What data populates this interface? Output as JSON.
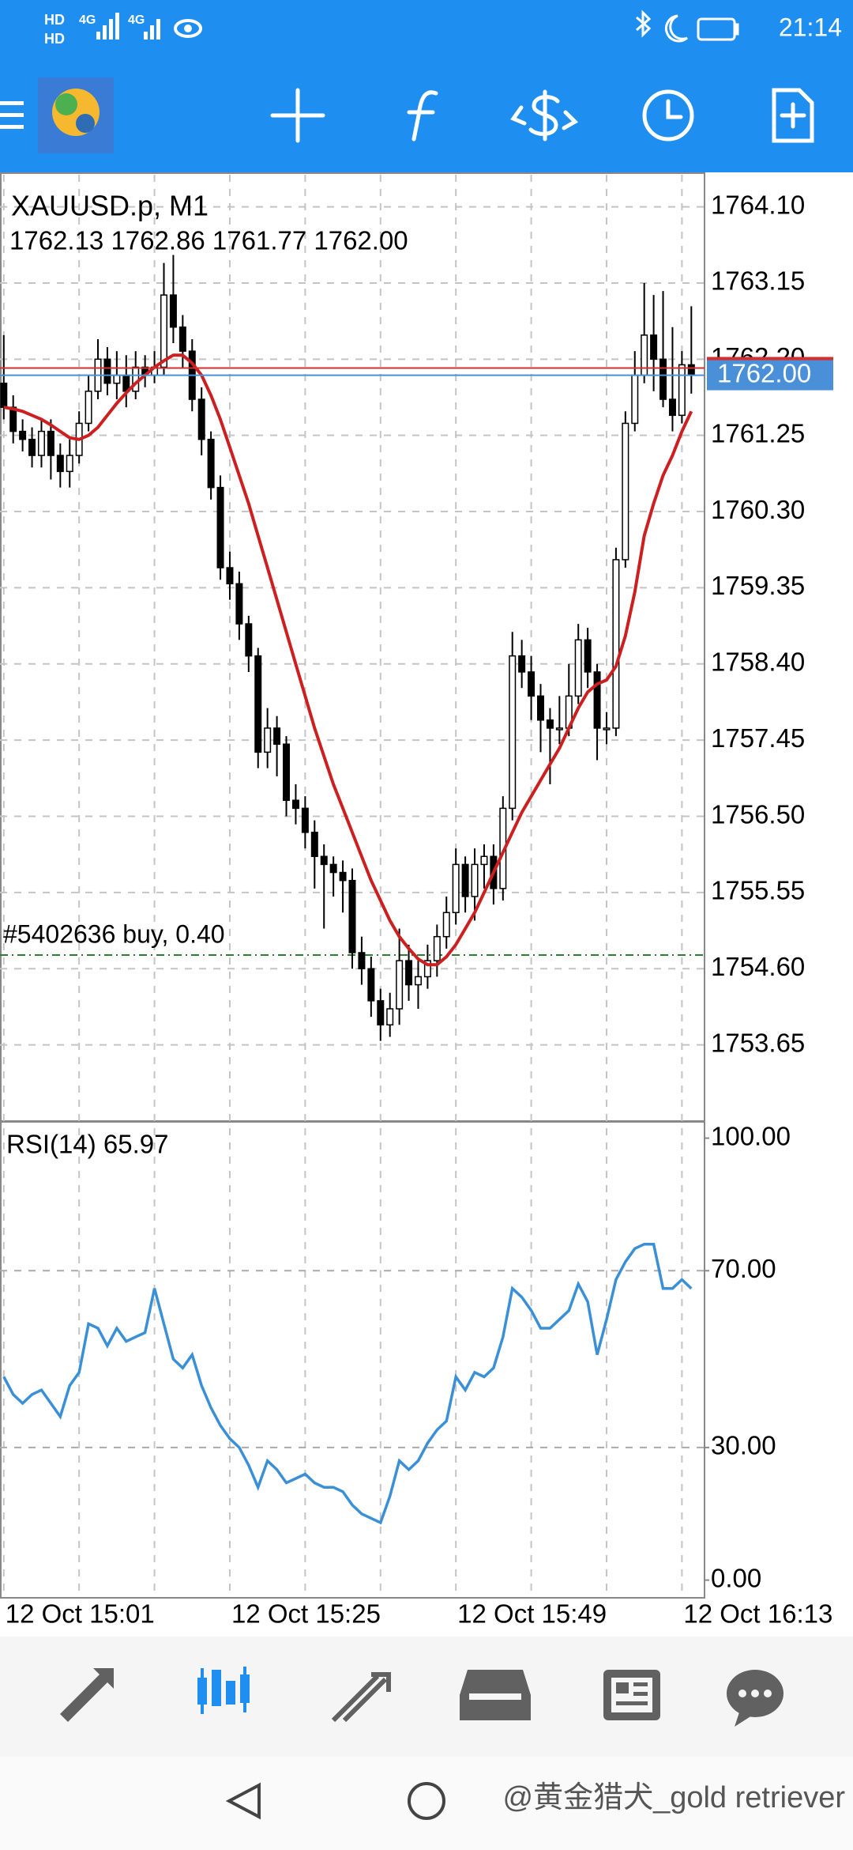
{
  "status_bar": {
    "hd": "HD",
    "net": "4G",
    "time": "21:14"
  },
  "chart_data": [
    {
      "type": "candlestick",
      "title": "XAUUSD.p, M1",
      "subtitle": "1762.13 1762.86 1761.77 1762.00",
      "open": [
        1761.9,
        1761.6,
        1761.3,
        1761.2,
        1761.0,
        1761.3,
        1761.0,
        1760.8,
        1761.0,
        1761.4,
        1761.8,
        1762.2,
        1761.9,
        1762.0,
        1761.8,
        1762.1,
        1762.0,
        1762.1,
        1763.0,
        1762.6,
        1762.3,
        1761.7,
        1761.2,
        1760.6,
        1759.6,
        1759.4,
        1758.9,
        1758.5,
        1757.3,
        1757.6,
        1757.4,
        1756.7,
        1756.6,
        1756.3,
        1756.0,
        1755.9,
        1755.8,
        1755.7,
        1754.8,
        1754.6,
        1754.2,
        1753.9,
        1754.1,
        1754.7,
        1754.4,
        1754.5,
        1754.7,
        1755.0,
        1755.3,
        1755.9,
        1755.5,
        1755.9,
        1756.0,
        1755.6,
        1756.6,
        1758.5,
        1758.3,
        1758.0,
        1757.7,
        1757.6,
        1757.6,
        1758.0,
        1758.7,
        1758.3,
        1757.6,
        1757.6,
        1759.7,
        1761.4,
        1762.0,
        1762.5,
        1762.2,
        1761.7,
        1761.5,
        1762.13
      ],
      "high": [
        1762.5,
        1761.75,
        1761.45,
        1761.35,
        1761.45,
        1761.45,
        1761.15,
        1761.2,
        1761.55,
        1762.0,
        1762.45,
        1762.35,
        1762.3,
        1762.25,
        1762.3,
        1762.25,
        1762.3,
        1763.4,
        1763.5,
        1762.75,
        1762.45,
        1761.85,
        1761.3,
        1760.75,
        1759.8,
        1759.55,
        1759.0,
        1758.6,
        1757.85,
        1757.75,
        1757.5,
        1756.9,
        1756.75,
        1756.45,
        1756.15,
        1756.0,
        1755.95,
        1755.85,
        1755.0,
        1754.75,
        1754.35,
        1754.3,
        1755.1,
        1754.9,
        1754.7,
        1754.9,
        1755.15,
        1755.5,
        1756.1,
        1756.0,
        1756.1,
        1756.15,
        1756.15,
        1756.75,
        1758.8,
        1758.7,
        1758.5,
        1758.15,
        1757.85,
        1758.0,
        1758.4,
        1758.9,
        1758.85,
        1758.4,
        1757.8,
        1759.85,
        1761.55,
        1762.3,
        1763.15,
        1763.0,
        1763.05,
        1762.6,
        1762.3,
        1762.86
      ],
      "low": [
        1761.45,
        1761.15,
        1761.05,
        1760.85,
        1760.85,
        1760.7,
        1760.6,
        1760.6,
        1760.9,
        1761.3,
        1761.7,
        1761.75,
        1761.7,
        1761.6,
        1761.7,
        1761.85,
        1761.9,
        1762.0,
        1762.4,
        1762.1,
        1761.55,
        1761.0,
        1760.45,
        1759.45,
        1759.2,
        1758.7,
        1758.3,
        1757.1,
        1757.1,
        1757.0,
        1756.5,
        1756.4,
        1756.1,
        1755.6,
        1755.1,
        1755.5,
        1755.3,
        1754.6,
        1754.4,
        1754.0,
        1753.7,
        1753.75,
        1753.9,
        1754.2,
        1754.1,
        1754.35,
        1754.5,
        1754.85,
        1755.15,
        1755.3,
        1755.2,
        1755.6,
        1755.4,
        1755.45,
        1756.45,
        1758.1,
        1757.7,
        1757.3,
        1756.9,
        1757.4,
        1757.5,
        1757.9,
        1758.1,
        1757.2,
        1757.4,
        1757.5,
        1759.6,
        1761.3,
        1761.9,
        1761.8,
        1761.6,
        1761.3,
        1761.4,
        1761.77
      ],
      "close": [
        1761.6,
        1761.3,
        1761.2,
        1761.0,
        1761.3,
        1761.0,
        1760.8,
        1761.0,
        1761.4,
        1761.8,
        1762.2,
        1761.9,
        1762.0,
        1761.8,
        1762.1,
        1762.0,
        1762.1,
        1763.0,
        1762.6,
        1762.3,
        1761.7,
        1761.2,
        1760.6,
        1759.6,
        1759.4,
        1758.9,
        1758.5,
        1757.3,
        1757.6,
        1757.4,
        1756.7,
        1756.6,
        1756.3,
        1756.0,
        1755.9,
        1755.8,
        1755.7,
        1754.8,
        1754.6,
        1754.2,
        1753.9,
        1754.1,
        1754.7,
        1754.4,
        1754.5,
        1754.7,
        1755.0,
        1755.3,
        1755.9,
        1755.5,
        1755.9,
        1756.0,
        1755.6,
        1756.6,
        1758.5,
        1758.3,
        1758.0,
        1757.7,
        1757.6,
        1757.6,
        1758.0,
        1758.7,
        1758.3,
        1757.6,
        1757.6,
        1759.7,
        1761.4,
        1762.0,
        1762.5,
        1762.2,
        1761.7,
        1761.5,
        1762.13,
        1762.0
      ],
      "ma": {
        "color": "#cc1f1f",
        "values": [
          1761.6,
          1761.58,
          1761.55,
          1761.5,
          1761.45,
          1761.38,
          1761.3,
          1761.22,
          1761.2,
          1761.25,
          1761.35,
          1761.5,
          1761.65,
          1761.78,
          1761.9,
          1762.0,
          1762.1,
          1762.18,
          1762.25,
          1762.25,
          1762.15,
          1762.0,
          1761.75,
          1761.45,
          1761.1,
          1760.75,
          1760.4,
          1760.0,
          1759.6,
          1759.2,
          1758.8,
          1758.4,
          1758.0,
          1757.6,
          1757.25,
          1756.9,
          1756.6,
          1756.3,
          1756.0,
          1755.7,
          1755.45,
          1755.2,
          1755.0,
          1754.85,
          1754.72,
          1754.65,
          1754.65,
          1754.75,
          1754.9,
          1755.1,
          1755.3,
          1755.55,
          1755.8,
          1756.05,
          1756.3,
          1756.55,
          1756.75,
          1756.95,
          1757.15,
          1757.35,
          1757.6,
          1757.85,
          1758.05,
          1758.15,
          1758.2,
          1758.37,
          1758.75,
          1759.3,
          1760.0,
          1760.4,
          1760.75,
          1761.0,
          1761.3,
          1761.55
        ]
      },
      "xlim": [
        -0.4,
        74.4
      ],
      "xticks": [
        {
          "value": 0,
          "label": "12 Oct 15:01"
        },
        {
          "value": 24,
          "label": "12 Oct 15:25"
        },
        {
          "value": 48,
          "label": "12 Oct 15:49"
        },
        {
          "value": 72,
          "label": "12 Oct 16:13"
        }
      ],
      "xgrid": [
        8,
        16,
        32,
        40,
        56,
        64
      ],
      "ylim": [
        1752.71,
        1764.5
      ],
      "yticks": [
        {
          "value": 1764.1,
          "label": "1764.10"
        },
        {
          "value": 1763.15,
          "label": "1763.15"
        },
        {
          "value": 1762.2,
          "label": "1762.20"
        },
        {
          "value": 1761.25,
          "label": "1761.25"
        },
        {
          "value": 1760.3,
          "label": "1760.30"
        },
        {
          "value": 1759.35,
          "label": "1759.35"
        },
        {
          "value": 1758.4,
          "label": "1758.40"
        },
        {
          "value": 1757.45,
          "label": "1757.45"
        },
        {
          "value": 1756.5,
          "label": "1756.50"
        },
        {
          "value": 1755.55,
          "label": "1755.55"
        },
        {
          "value": 1754.6,
          "label": "1754.60"
        },
        {
          "value": 1753.65,
          "label": "1753.65"
        }
      ],
      "grid": true,
      "ask": {
        "value": 1762.09,
        "color": "#d32f2f"
      },
      "bid": {
        "value": 1762,
        "label": "1762.00",
        "color": "#4a90d9"
      },
      "order": {
        "label": "#5402636 buy, 0.40",
        "value": 1754.77,
        "color": "#2e7d32"
      }
    },
    {
      "type": "line",
      "title": "RSI(14) 65.97",
      "series": [
        {
          "color": "#3a8fd6",
          "values": [
            46,
            42,
            40,
            42,
            43,
            40,
            37,
            44,
            47,
            58,
            57,
            53,
            57,
            54,
            55,
            56,
            66,
            58,
            50,
            48,
            51,
            44,
            39,
            35,
            32,
            30,
            26,
            21,
            27,
            25,
            22,
            23,
            24,
            22,
            21,
            21,
            20,
            17,
            15,
            14,
            13,
            19,
            27,
            25,
            27,
            31,
            34,
            36,
            46,
            43,
            47,
            46,
            48,
            55,
            66,
            64,
            61,
            57,
            57,
            59,
            61,
            67,
            63,
            51,
            59,
            68,
            72,
            75,
            76,
            76,
            66,
            66,
            68,
            65.97
          ]
        }
      ],
      "xlim": [
        -0.4,
        74.4
      ],
      "ylim": [
        -4,
        103.5
      ],
      "yticks": [
        {
          "value": 100,
          "label": "100.00"
        },
        {
          "value": 70,
          "label": "70.00"
        },
        {
          "value": 30,
          "label": "30.00"
        },
        {
          "value": 0,
          "label": "0.00"
        }
      ],
      "levels": [
        70,
        30
      ]
    }
  ],
  "watermark": "@黄金猎犬_gold retriever"
}
